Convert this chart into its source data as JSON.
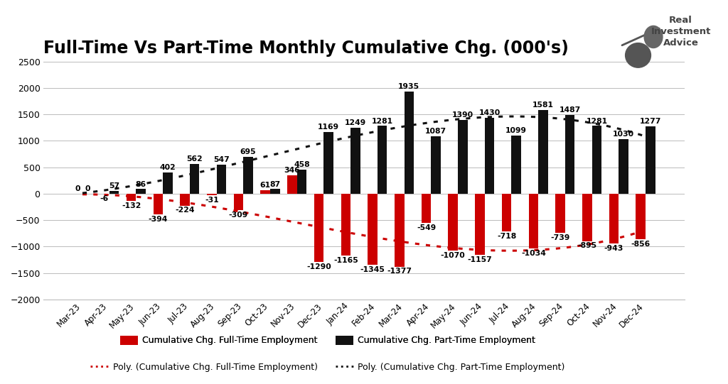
{
  "title": "Full-Time Vs Part-Time Monthly Cumulative Chg. (000's)",
  "categories": [
    "Mar-23",
    "Apr-23",
    "May-23",
    "Jun-23",
    "Jul-23",
    "Aug-23",
    "Sep-23",
    "Oct-23",
    "Nov-23",
    "Dec-23",
    "Jan-24",
    "Feb-24",
    "Mar-24",
    "Apr-24",
    "May-24",
    "Jun-24",
    "Jul-24",
    "Aug-24",
    "Sep-24",
    "Oct-24",
    "Nov-24",
    "Dec-24"
  ],
  "fulltime": [
    0,
    -6,
    -132,
    -394,
    -224,
    -31,
    -309,
    61,
    346,
    -1290,
    -1165,
    -1345,
    -1377,
    -549,
    -1070,
    -1157,
    -718,
    -1034,
    -739,
    -895,
    -943,
    -856
  ],
  "parttime": [
    0,
    57,
    86,
    402,
    562,
    547,
    695,
    87,
    458,
    1169,
    1249,
    1281,
    1935,
    1087,
    1390,
    1430,
    1099,
    1581,
    1487,
    1281,
    1030,
    1277
  ],
  "fulltime_color": "#CC0000",
  "parttime_color": "#111111",
  "bg_color": "#FFFFFF",
  "grid_color": "#BBBBBB",
  "ylim": [
    -2000,
    2500
  ],
  "yticks": [
    -2000,
    -1500,
    -1000,
    -500,
    0,
    500,
    1000,
    1500,
    2000,
    2500
  ],
  "title_fontsize": 17,
  "bar_width": 0.36,
  "annotation_fontsize": 7.8
}
